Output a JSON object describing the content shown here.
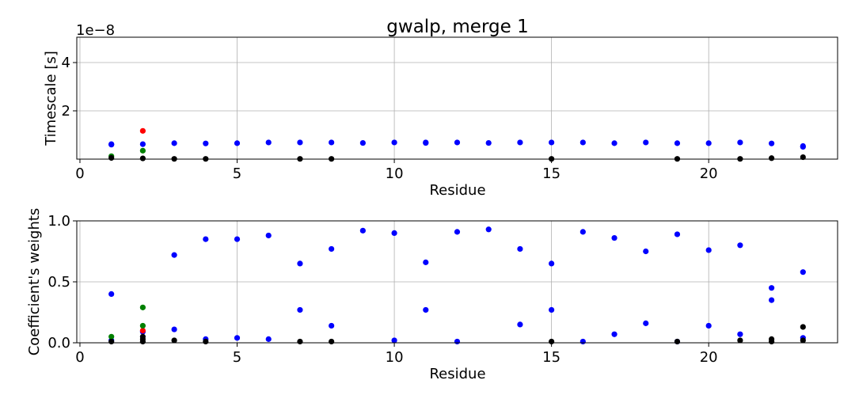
{
  "chart_data": {
    "title": "gwalp, merge 1",
    "type": "scatter",
    "panels": [
      {
        "id": "timescale",
        "ylabel": "Timescale [s]",
        "xlabel": "Residue",
        "offset_text": "1e−8",
        "xlim": [
          -0.1,
          24.1
        ],
        "ylim": [
          0,
          5.05
        ],
        "xticks": [
          0,
          5,
          10,
          15,
          20
        ],
        "yticks": [
          2,
          4
        ],
        "grid": true,
        "series": [
          {
            "color": "#0000ff",
            "x": [
              1,
              2,
              3,
              4,
              5,
              6,
              7,
              8,
              9,
              10,
              11,
              12,
              13,
              14,
              15,
              16,
              17,
              18,
              19,
              20,
              21,
              22,
              23
            ],
            "y": [
              0.62,
              0.62,
              0.66,
              0.65,
              0.66,
              0.69,
              0.69,
              0.69,
              0.67,
              0.69,
              0.69,
              0.69,
              0.67,
              0.69,
              0.69,
              0.69,
              0.66,
              0.69,
              0.66,
              0.66,
              0.69,
              0.65,
              0.54
            ]
          },
          {
            "color": "#0000ff",
            "x": [
              1,
              11,
              23
            ],
            "y": [
              0.6,
              0.67,
              0.51
            ]
          },
          {
            "color": "#ff0000",
            "x": [
              2
            ],
            "y": [
              1.17
            ]
          },
          {
            "color": "#008000",
            "x": [
              1,
              2
            ],
            "y": [
              0.12,
              0.35
            ]
          },
          {
            "color": "#000000",
            "x": [
              1,
              2,
              3,
              4,
              7,
              8,
              15,
              19,
              21,
              22,
              23
            ],
            "y": [
              0.05,
              0.03,
              0.01,
              0.01,
              0.01,
              0.01,
              0.01,
              0.01,
              0.01,
              0.04,
              0.08
            ]
          }
        ]
      },
      {
        "id": "weights",
        "ylabel": "Coefficient's weights",
        "xlabel": "Residue",
        "xlim": [
          -0.1,
          24.1
        ],
        "ylim": [
          0,
          1.0
        ],
        "xticks": [
          0,
          5,
          10,
          15,
          20
        ],
        "yticks": [
          0.0,
          0.5,
          1.0
        ],
        "grid": true,
        "series": [
          {
            "color": "#0000ff",
            "x": [
              1,
              2,
              3,
              4,
              5,
              6,
              7,
              8,
              9,
              10,
              11,
              12,
              13,
              14,
              15,
              16,
              17,
              18,
              19,
              20,
              21,
              22,
              23
            ],
            "y": [
              0.4,
              0.09,
              0.72,
              0.85,
              0.85,
              0.88,
              0.65,
              0.77,
              0.92,
              0.9,
              0.66,
              0.91,
              0.93,
              0.77,
              0.65,
              0.91,
              0.86,
              0.75,
              0.89,
              0.76,
              0.8,
              0.45,
              0.58
            ]
          },
          {
            "color": "#0000ff",
            "x": [
              1,
              3,
              4,
              5,
              6,
              7,
              8,
              10,
              11,
              12,
              14,
              15,
              16,
              17,
              18,
              19,
              20,
              21,
              22,
              23
            ],
            "y": [
              0.02,
              0.11,
              0.03,
              0.04,
              0.03,
              0.27,
              0.14,
              0.02,
              0.27,
              0.01,
              0.15,
              0.27,
              0.01,
              0.07,
              0.16,
              0.01,
              0.14,
              0.07,
              0.35,
              0.04
            ]
          },
          {
            "color": "#ff0000",
            "x": [
              2
            ],
            "y": [
              0.1
            ]
          },
          {
            "color": "#008000",
            "x": [
              1,
              2,
              2
            ],
            "y": [
              0.05,
              0.29,
              0.14
            ]
          },
          {
            "color": "#000000",
            "x": [
              1,
              2,
              2,
              2,
              3,
              4,
              7,
              8,
              15,
              19,
              21,
              22,
              22,
              23,
              23
            ],
            "y": [
              0.01,
              0.05,
              0.03,
              0.01,
              0.02,
              0.01,
              0.01,
              0.01,
              0.01,
              0.01,
              0.02,
              0.03,
              0.01,
              0.13,
              0.02
            ]
          }
        ]
      }
    ]
  }
}
